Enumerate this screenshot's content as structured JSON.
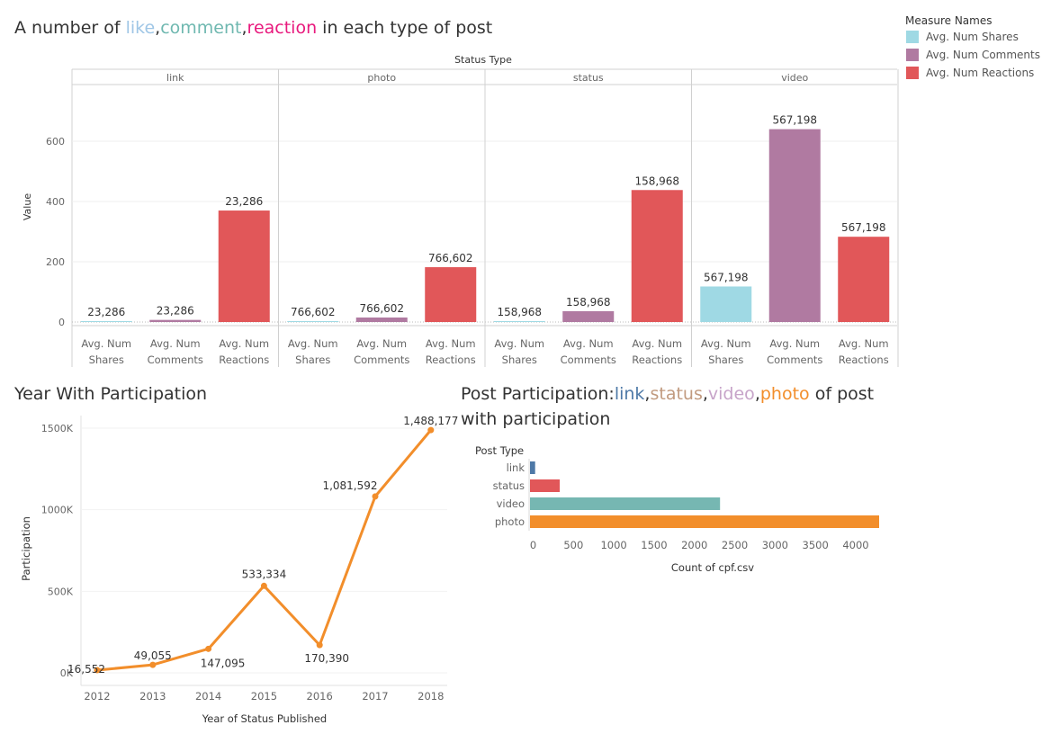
{
  "colors": {
    "shares": "#9fd9e4",
    "comments": "#b07aa1",
    "reactions": "#e15759",
    "line": "#f28e2b",
    "link": "#4e79a7",
    "status": "#e15759",
    "video": "#76b7b2",
    "photo": "#f28e2b",
    "like": "#9fc6e6",
    "comment_word": "#6fb8b0",
    "reaction_word": "#e8197d",
    "title_link": "#4e79a7",
    "title_status": "#c19a7f",
    "title_video": "#c7a4c9",
    "title_photo": "#f28e2b"
  },
  "top_title": {
    "prefix": "A number of ",
    "like": "like",
    "comma1": ",",
    "comment": "comment",
    "comma2": ",",
    "reaction": "reaction",
    "suffix": " in each type of post"
  },
  "legend": {
    "title": "Measure Names",
    "items": [
      "Avg. Num Shares",
      "Avg. Num Comments",
      "Avg. Num Reactions"
    ]
  },
  "line_title": "Year With Participation",
  "bar_title": {
    "prefix": "Post Participation:",
    "link": "link",
    "c1": ",",
    "status": "status",
    "c2": ",",
    "video": "video",
    "c3": ",",
    "photo": "photo",
    "suffix1": " of post",
    "line2": "with participation"
  },
  "chart_data": [
    {
      "type": "bar",
      "title": "A number of like,comment,reaction in each type of post",
      "column_header": "Status Type",
      "ylabel": "Value",
      "ylim": [
        0,
        700
      ],
      "yticks": [
        0,
        200,
        400,
        600
      ],
      "panels": [
        "link",
        "photo",
        "status",
        "video"
      ],
      "categories": [
        "Avg. Num Shares",
        "Avg. Num Comments",
        "Avg. Num Reactions"
      ],
      "category_lines": [
        [
          "Avg. Num",
          "Shares"
        ],
        [
          "Avg. Num",
          "Comments"
        ],
        [
          "Avg. Num",
          "Reactions"
        ]
      ],
      "values": [
        [
          3,
          7,
          370
        ],
        [
          3,
          15,
          182
        ],
        [
          2,
          36,
          438
        ],
        [
          118,
          640,
          283
        ]
      ],
      "labels": [
        [
          "23,286",
          "23,286",
          "23,286"
        ],
        [
          "766,602",
          "766,602",
          "766,602"
        ],
        [
          "158,968",
          "158,968",
          "158,968"
        ],
        [
          "567,198",
          "567,198",
          "567,198"
        ]
      ],
      "legend": "top-right",
      "grid": true
    },
    {
      "type": "line",
      "title": "Year With Participation",
      "xlabel": "Year of Status Published",
      "ylabel": "Participation",
      "x": [
        "2012",
        "2013",
        "2014",
        "2015",
        "2016",
        "2017",
        "2018"
      ],
      "values": [
        16552,
        49055,
        147095,
        533334,
        170390,
        1081592,
        1488177
      ],
      "labels": [
        "16,552",
        "49,055",
        "147,095",
        "533,334",
        "170,390",
        "1,081,592",
        "1,488,177"
      ],
      "ylim": [
        -30000,
        1560000
      ],
      "yticks": [
        0,
        500000,
        1000000,
        1500000
      ],
      "ytick_labels": [
        "0K",
        "500K",
        "1000K",
        "1500K"
      ]
    },
    {
      "type": "bar",
      "orientation": "horizontal",
      "title": "Post Participation:link,status,video,photo of post with participation",
      "row_header": "Post Type",
      "categories": [
        "link",
        "status",
        "video",
        "photo"
      ],
      "values": [
        63,
        365,
        2334,
        4288
      ],
      "xlabel": "Count of cpf.csv",
      "xlim": [
        0,
        4300
      ],
      "xticks": [
        0,
        500,
        1000,
        1500,
        2000,
        2500,
        3000,
        3500,
        4000
      ]
    }
  ]
}
